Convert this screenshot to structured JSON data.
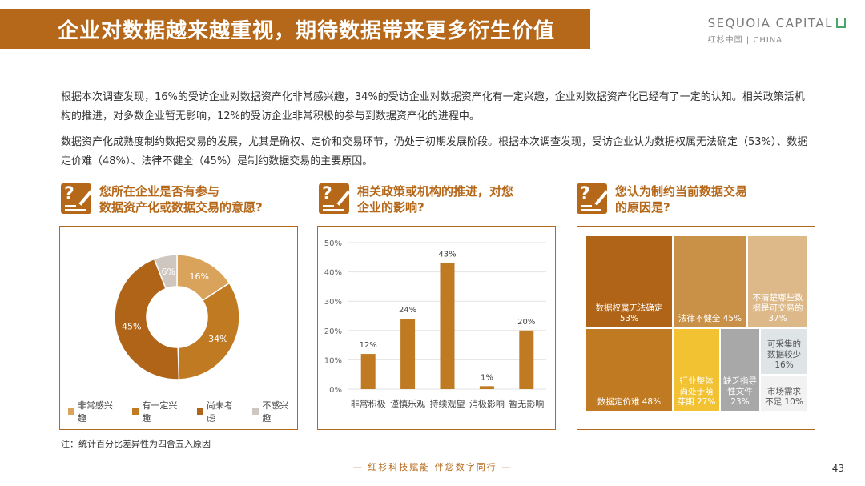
{
  "header": {
    "title": "企业对数据越来越重视，期待数据带来更多衍生价值",
    "brand_en": "SEQUOIA CAPITAL",
    "brand_cn": "红杉中国 | CHINA"
  },
  "paragraphs": [
    "根据本次调查发现，16%的受访企业对数据资产化非常感兴趣，34%的受访企业对数据资产化有一定兴趣，企业对数据资产化已经有了一定的认知。相关政策活机构的推进，对多数企业暂无影响，12%的受访企业非常积极的参与到数据资产化的进程中。",
    "数据资产化成熟度制约数据交易的发展，尤其是确权、定价和交易环节，仍处于初期发展阶段。根据本次调查发现，受访企业认为数据权属无法确定（53%）、数据定价难（48%）、法律不健全（45%）是制约数据交易的主要原因。"
  ],
  "questions": [
    {
      "line1": "您所在企业是否有参与",
      "line2": "数据资产化或数据交易的意愿?"
    },
    {
      "line1": "相关政策或机构的推进，对您",
      "line2": "企业的影响?"
    },
    {
      "line1": "您认为制约当前数据交易",
      "line2": "的原因是?"
    }
  ],
  "chart_data": [
    {
      "type": "pie",
      "donut": true,
      "categories": [
        "非常感兴趣",
        "有一定兴趣",
        "尚未考虑",
        "不感兴趣"
      ],
      "values": [
        16,
        34,
        45,
        6
      ],
      "labels": [
        "16%",
        "34%",
        "45%",
        "6%"
      ],
      "colors": [
        "#d9a35c",
        "#c07a22",
        "#b06418",
        "#cfc6c0"
      ],
      "legend": "bottom"
    },
    {
      "type": "bar",
      "categories": [
        "非常积极",
        "谨慎乐观",
        "持续观望",
        "消极影响",
        "暂无影响"
      ],
      "values": [
        12,
        24,
        43,
        1,
        20
      ],
      "labels": [
        "12%",
        "24%",
        "43%",
        "1%",
        "20%"
      ],
      "yticks": [
        "0%",
        "10%",
        "20%",
        "30%",
        "40%",
        "50%"
      ],
      "ylim": [
        0,
        50
      ],
      "color": "#c07a22",
      "grid": true
    },
    {
      "type": "treemap",
      "items": [
        {
          "label": "数据权属无法确定",
          "value": "53%",
          "color": "#b06418",
          "text_color": "#ffffff"
        },
        {
          "label": "数据定价难",
          "value": "48%",
          "color": "#c07a22",
          "text_color": "#ffffff"
        },
        {
          "label": "法律不健全",
          "value": "45%",
          "color": "#c99048",
          "text_color": "#ffffff"
        },
        {
          "label": "不清楚哪些数据是可交易的",
          "value": "37%",
          "color": "#ddb98a",
          "text_color": "#ffffff"
        },
        {
          "label": "行业整体尚处于萌芽期",
          "value": "27%",
          "color": "#f2c233",
          "text_color": "#ffffff"
        },
        {
          "label": "缺乏指导性文件",
          "value": "23%",
          "color": "#a8a8a8",
          "text_color": "#ffffff"
        },
        {
          "label": "可采集的数据较少",
          "value": "16%",
          "color": "#dfe4e6",
          "text_color": "#555555"
        },
        {
          "label": "市场需求不足",
          "value": "10%",
          "color": "#f2f2f2",
          "text_color": "#555555"
        }
      ]
    }
  ],
  "note": "注：统计百分比差异性为四舍五入原因",
  "footer": "— 红杉科技赋能   伴您数字同行 —",
  "page_number": "43"
}
